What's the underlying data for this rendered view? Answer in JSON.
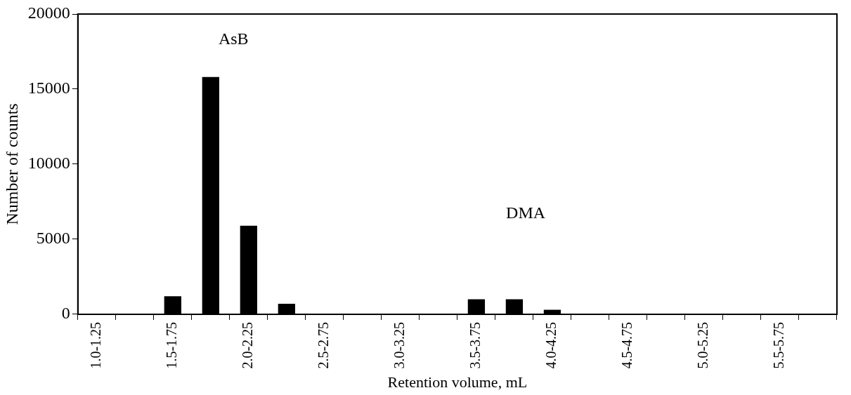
{
  "chart_data": {
    "type": "bar",
    "xlabel": "Retention volume, mL",
    "ylabel": "Number of counts",
    "categories": [
      "1.0-1.25",
      null,
      "1.5-1.75",
      null,
      "2.0-2.25",
      null,
      "2.5-2.75",
      null,
      "3.0-3.25",
      null,
      "3.5-3.75",
      null,
      "4.0-4.25",
      null,
      "4.5-4.75",
      null,
      "5.0-5.25",
      null,
      "5.5-5.75",
      null
    ],
    "values": [
      0,
      0,
      1200,
      15800,
      5900,
      700,
      0,
      0,
      0,
      0,
      1000,
      1000,
      300,
      0,
      0,
      0,
      0,
      0,
      0,
      0
    ],
    "color": "#000000",
    "ylim": [
      0,
      20000
    ],
    "yticks": [
      0,
      5000,
      10000,
      15000,
      20000
    ],
    "grid": false,
    "legend": false,
    "annotations": [
      "AsB",
      "DMA"
    ]
  }
}
